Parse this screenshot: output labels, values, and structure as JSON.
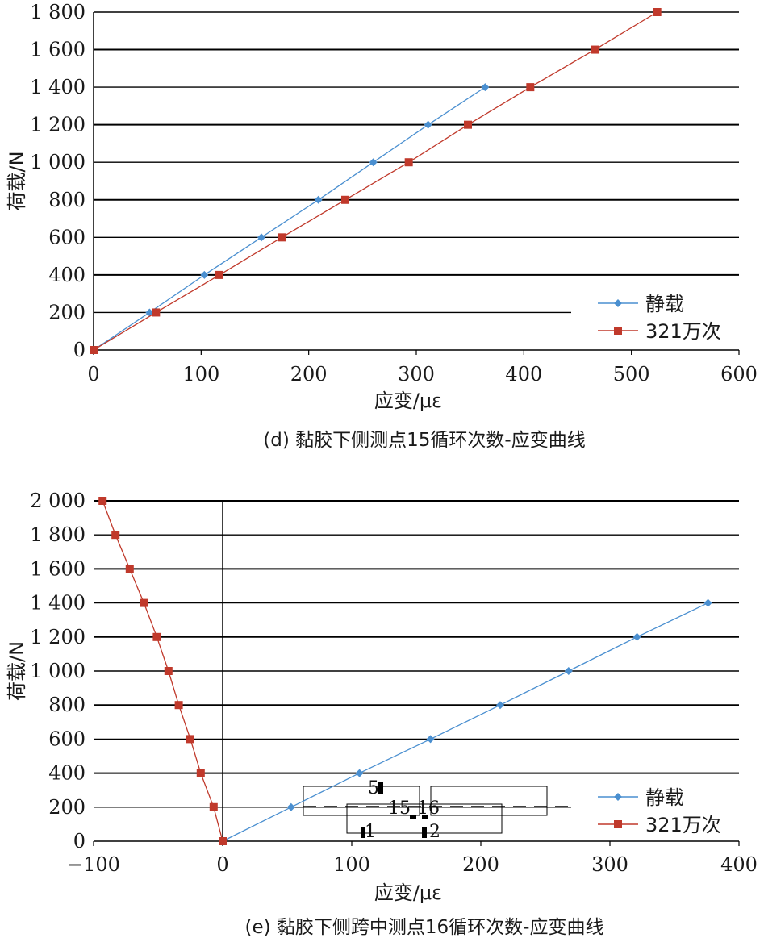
{
  "colors": {
    "static": "#4a8fd0",
    "cyclic": "#c0392b",
    "grid": "#000000"
  },
  "chart_data": [
    {
      "type": "line",
      "caption": "(d) 黏胶下侧测点15循环次数-应变曲线",
      "xlabel": "应变/με",
      "ylabel": "荷载/N",
      "xlim": [
        0,
        600
      ],
      "ylim": [
        0,
        1800
      ],
      "xticks": [
        0,
        100,
        200,
        300,
        400,
        500,
        600
      ],
      "yticks": [
        0,
        200,
        400,
        600,
        800,
        1000,
        1200,
        1400,
        1600,
        1800
      ],
      "xtick_labels": [
        "0",
        "100",
        "200",
        "300",
        "400",
        "500",
        "600"
      ],
      "ytick_labels": [
        "0",
        "200",
        "400",
        "600",
        "800",
        "1 000",
        "1 200",
        "1 400",
        "1 600",
        "1 800"
      ],
      "grid": "horizontal",
      "legend_position": "bottom-right",
      "series": [
        {
          "name": "静载",
          "marker": "diamond",
          "color_key": "static",
          "x": [
            0,
            52,
            103,
            156,
            209,
            260,
            311,
            364
          ],
          "y": [
            0,
            200,
            400,
            600,
            800,
            1000,
            1200,
            1400
          ]
        },
        {
          "name": "321万次",
          "marker": "square",
          "color_key": "cyclic",
          "x": [
            0,
            58,
            117,
            175,
            234,
            293,
            348,
            406,
            466,
            524
          ],
          "y": [
            0,
            200,
            400,
            600,
            800,
            1000,
            1200,
            1400,
            1600,
            1800
          ]
        }
      ]
    },
    {
      "type": "line",
      "caption": "(e) 黏胶下侧跨中测点16循环次数-应变曲线",
      "xlabel": "应变/με",
      "ylabel": "荷载/N",
      "xlim": [
        -100,
        400
      ],
      "ylim": [
        0,
        2000
      ],
      "xticks": [
        -100,
        0,
        100,
        200,
        300,
        400
      ],
      "yticks": [
        0,
        200,
        400,
        600,
        800,
        1000,
        1200,
        1400,
        1600,
        1800,
        2000
      ],
      "xtick_labels": [
        "−100",
        "0",
        "100",
        "200",
        "300",
        "400"
      ],
      "ytick_labels": [
        "0",
        "200",
        "400",
        "600",
        "800",
        "1 000",
        "1 200",
        "1 400",
        "1 600",
        "1 800",
        "2 000"
      ],
      "grid": "horizontal",
      "legend_position": "bottom-right",
      "series": [
        {
          "name": "静载",
          "marker": "diamond",
          "color_key": "static",
          "x": [
            0,
            53,
            106,
            161,
            215,
            268,
            321,
            376
          ],
          "y": [
            0,
            200,
            400,
            600,
            800,
            1000,
            1200,
            1400
          ]
        },
        {
          "name": "321万次",
          "marker": "square",
          "color_key": "cyclic",
          "x": [
            0,
            -7,
            -17,
            -25,
            -34,
            -42,
            -51,
            -61,
            -72,
            -83,
            -93
          ],
          "y": [
            0,
            200,
            400,
            600,
            800,
            1000,
            1200,
            1400,
            1600,
            1800,
            2000
          ]
        }
      ],
      "inset_labels": [
        "5",
        "15",
        "16",
        "1",
        "2"
      ]
    }
  ]
}
